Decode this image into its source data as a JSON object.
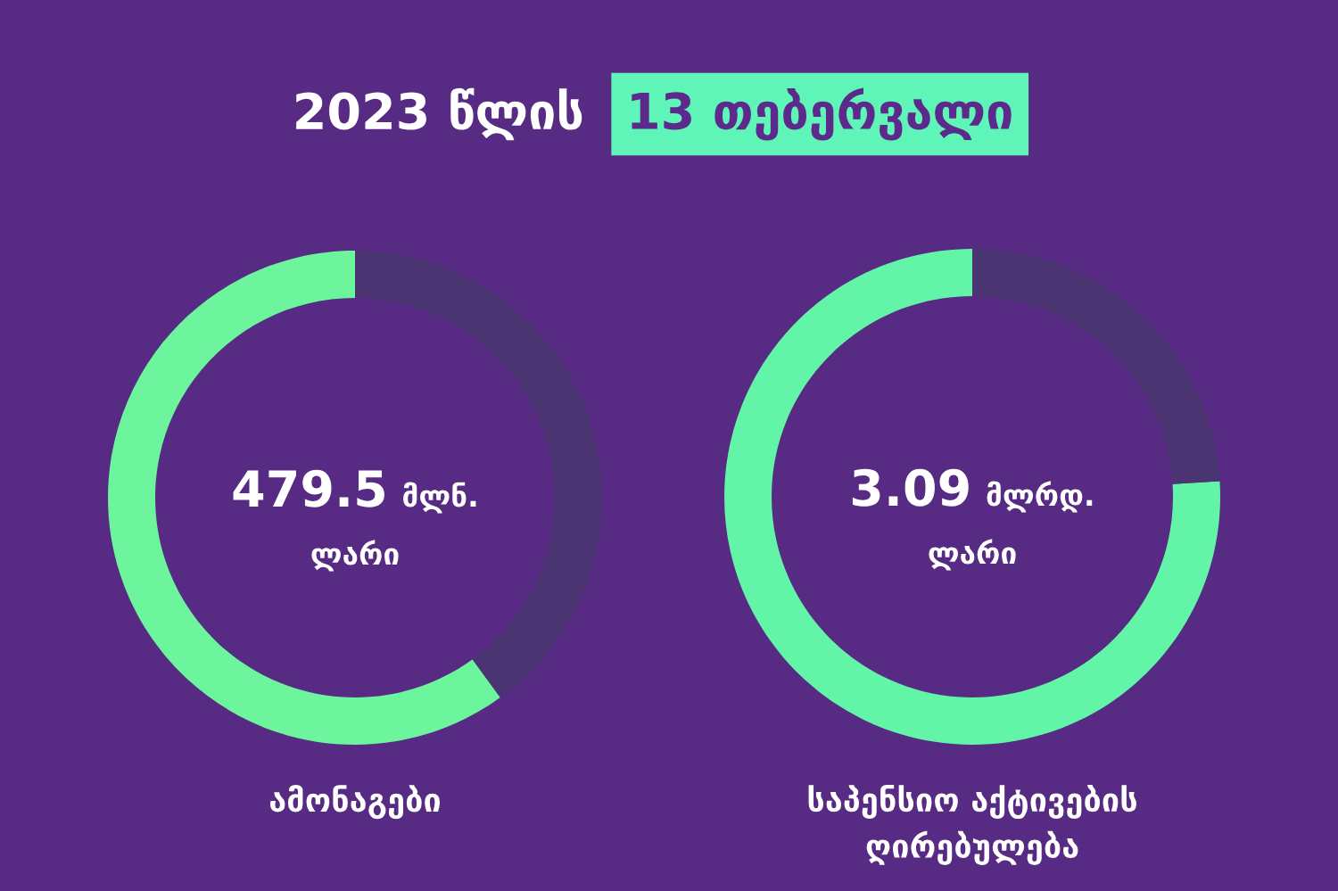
{
  "chart_data": [
    {
      "type": "other",
      "title": "2023 წლის",
      "subtitle": "13 თებერვალი"
    },
    {
      "type": "donut",
      "title": "ამონაგები",
      "categories": [
        null,
        null
      ],
      "values": [
        60,
        40
      ],
      "colors": [
        "#6cf59c",
        "#4a3572"
      ],
      "annotations": [
        "479.5",
        "მლნ.",
        "ლარი"
      ]
    },
    {
      "type": "donut",
      "title": "საპენსიო აქტივების\nღირებულება",
      "categories": [
        null,
        null
      ],
      "values": [
        76,
        24
      ],
      "colors": [
        "#62f5a8",
        "#4a3572"
      ],
      "annotations": [
        "3.09",
        "მლრდ.",
        "ლარი"
      ]
    }
  ]
}
